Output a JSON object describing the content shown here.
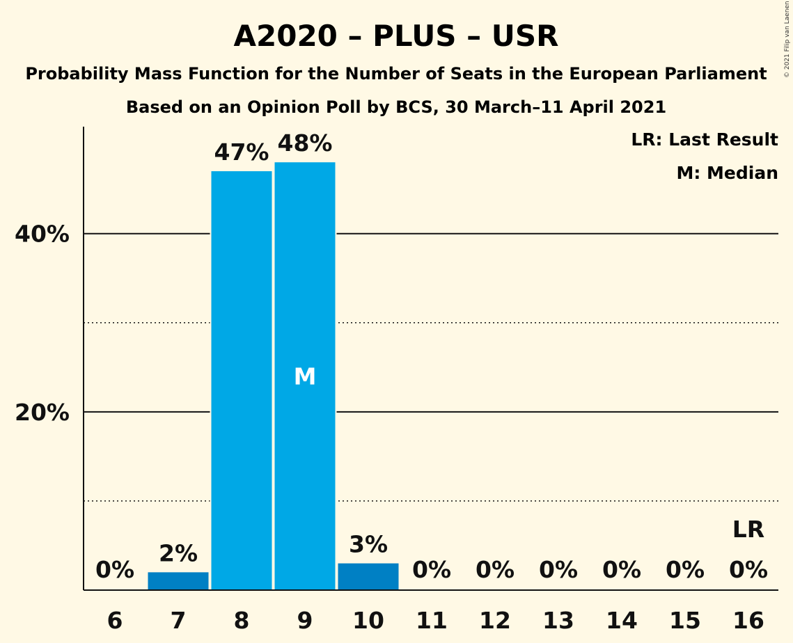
{
  "title": "A2020 – PLUS – USR",
  "subtitle": "Probability Mass Function for the Number of Seats in the European Parliament",
  "subtitle2": "Based on an Opinion Poll by BCS, 30 March–11 April 2021",
  "copyright": "© 2021 Filip van Laenen",
  "legend": {
    "last_result": "LR: Last Result",
    "median": "M: Median"
  },
  "colors": {
    "background": "#fff9e5",
    "bar_main": "#00a8e6",
    "bar_dark": "#0080c4",
    "text": "#111111"
  },
  "chart_data": {
    "type": "bar",
    "categories": [
      "6",
      "7",
      "8",
      "9",
      "10",
      "11",
      "12",
      "13",
      "14",
      "15",
      "16"
    ],
    "values": [
      0,
      2,
      47,
      48,
      3,
      0,
      0,
      0,
      0,
      0,
      0
    ],
    "data_labels": [
      "0%",
      "2%",
      "47%",
      "48%",
      "3%",
      "0%",
      "0%",
      "0%",
      "0%",
      "0%",
      "0%"
    ],
    "median_category": "9",
    "median_marker": "M",
    "last_result_category": "16",
    "last_result_marker": "LR",
    "ylim": [
      0,
      52
    ],
    "yticks": [
      20,
      40
    ],
    "ytick_labels": [
      "20%",
      "40%"
    ],
    "minor_gridlines": [
      10,
      30
    ],
    "xlabel": "",
    "ylabel": "",
    "grid": true,
    "legend_position": "top-right"
  }
}
